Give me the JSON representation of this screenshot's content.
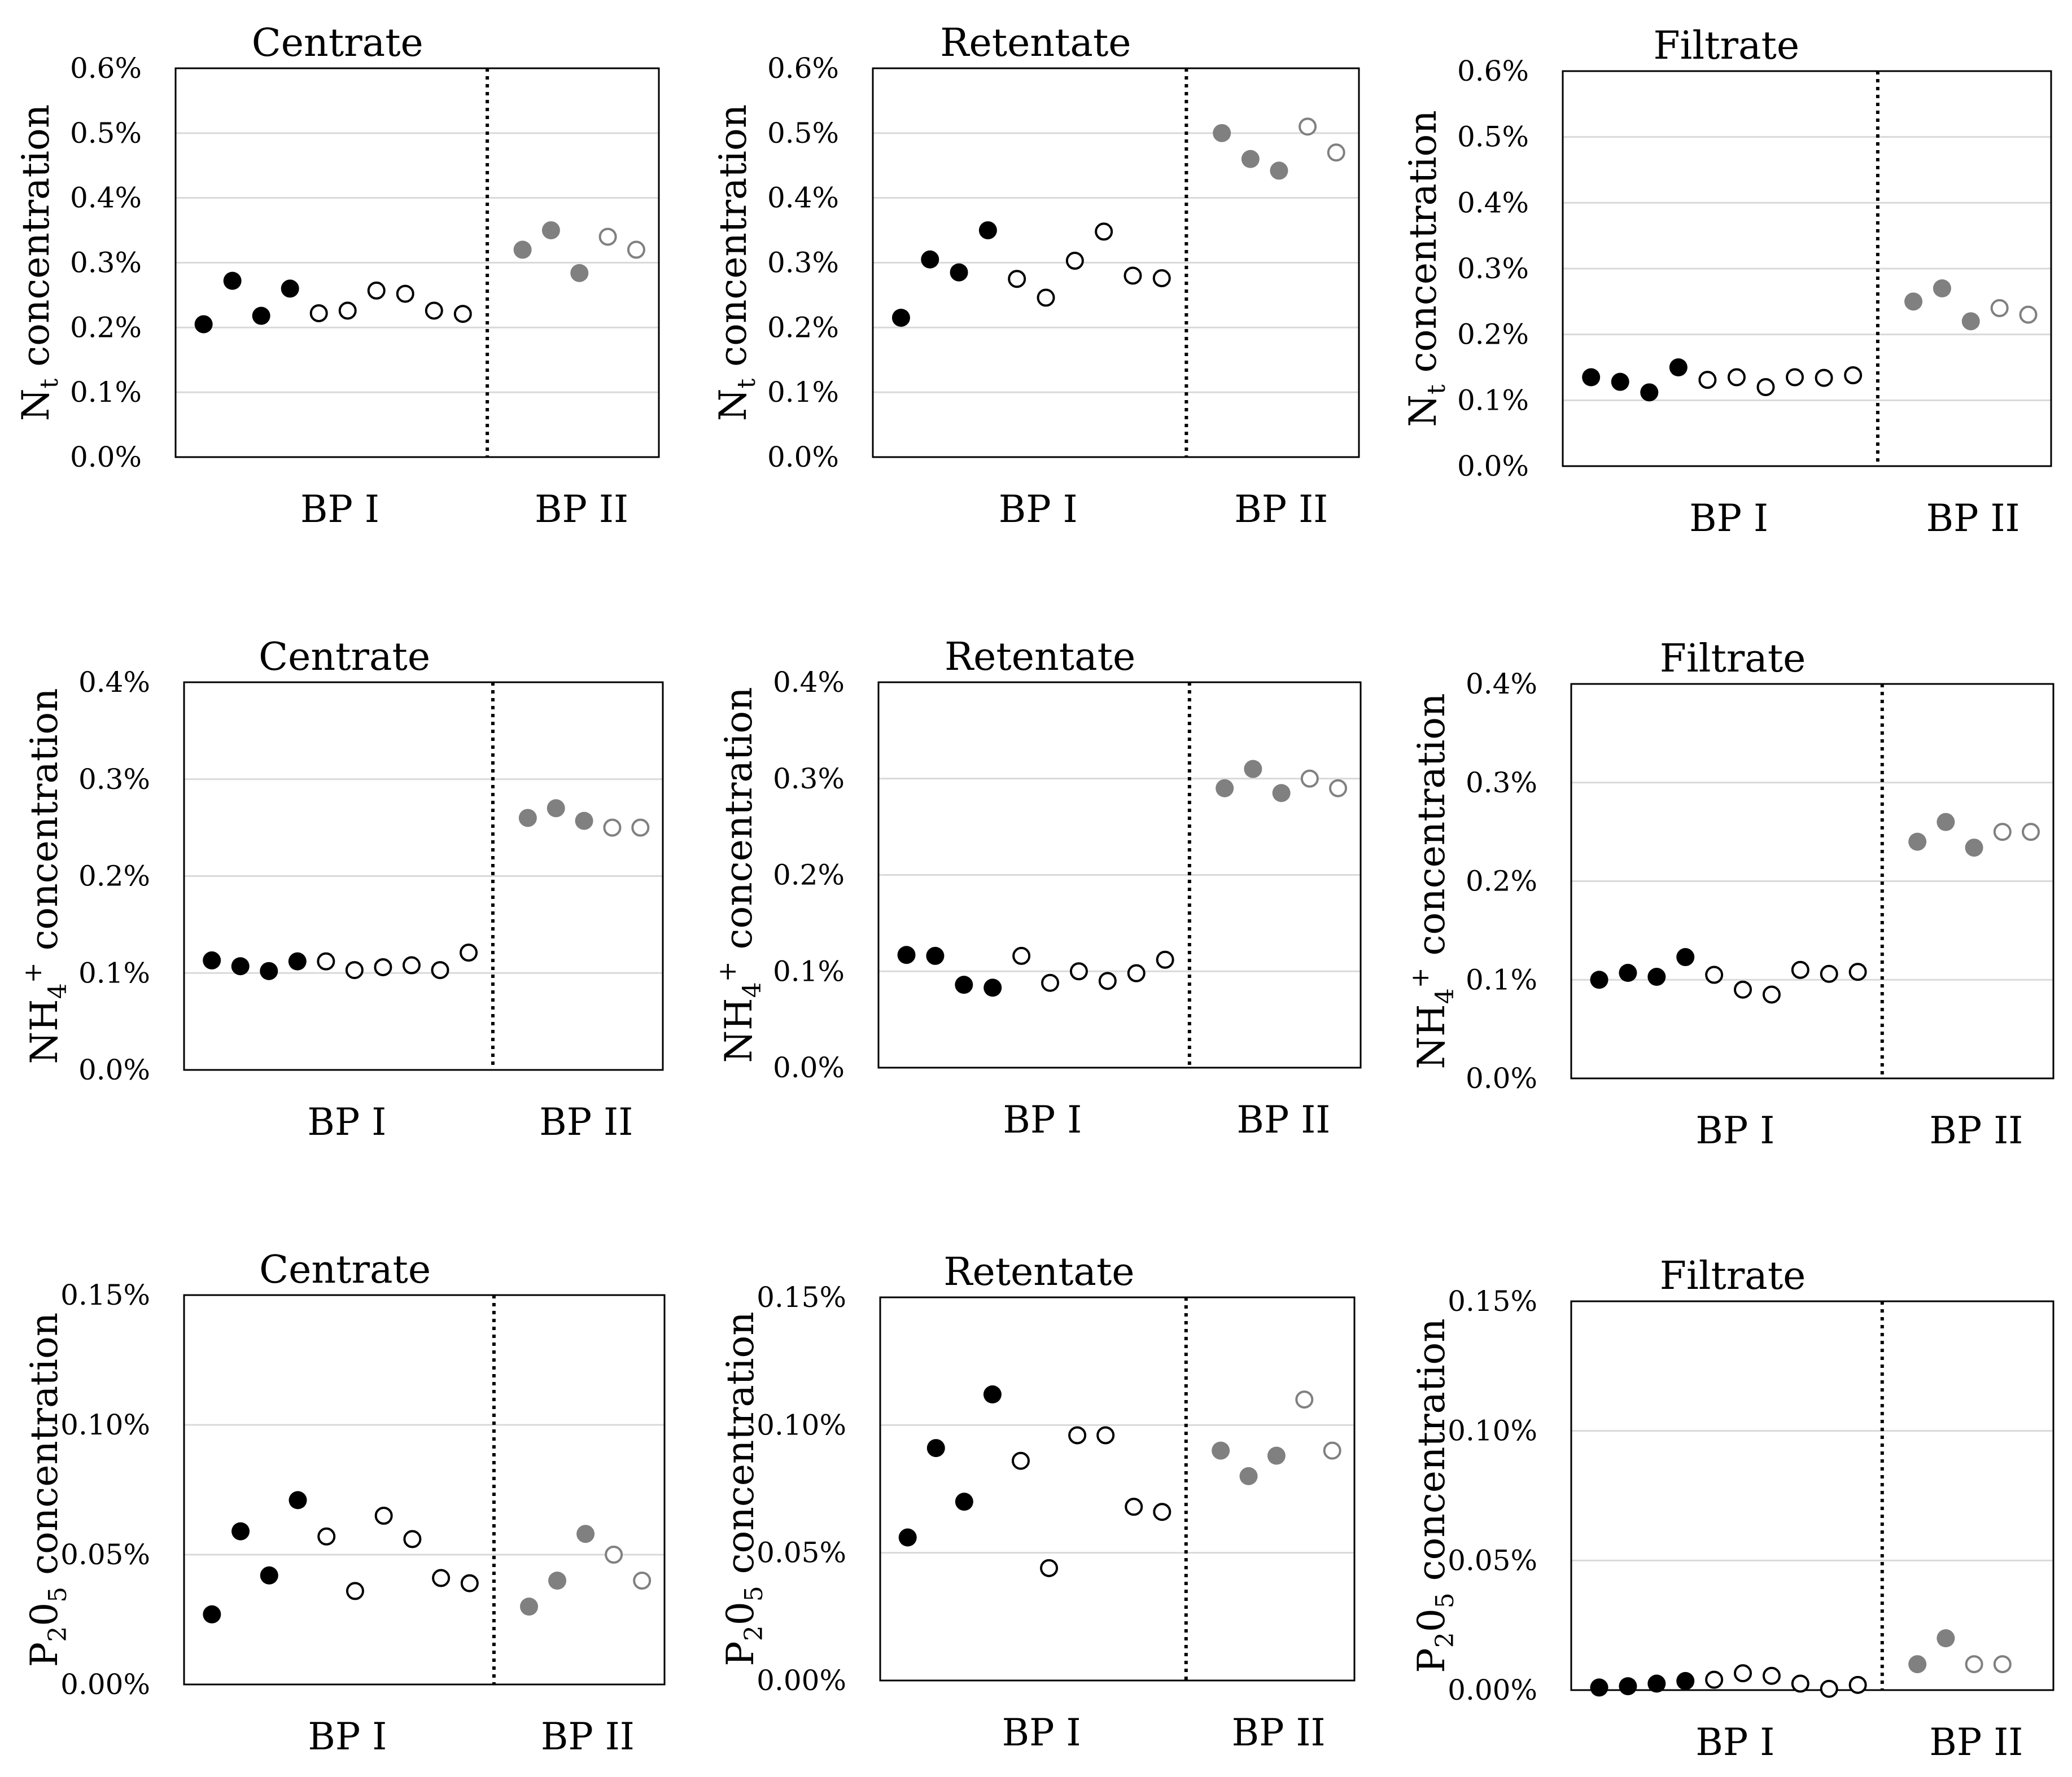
{
  "figure": {
    "colors": {
      "black_fill": "#000000",
      "gray_fill": "#808080",
      "open_stroke_black": "#000000",
      "open_stroke_gray": "#808080",
      "grid": "#d9d9d9"
    },
    "group_labels": [
      "BP I",
      "BP II"
    ]
  },
  "chart_data": [
    {
      "type": "scatter",
      "title": "Centrate",
      "ylabel": {
        "base": "N",
        "sub": "t",
        "sup": "",
        "rest": " concentration"
      },
      "ylim": [
        0,
        0.6
      ],
      "yticks": [
        "0.0%",
        "0.1%",
        "0.2%",
        "0.3%",
        "0.4%",
        "0.5%",
        "0.6%"
      ],
      "groups": [
        "BP I",
        "BP II"
      ],
      "bp1": [
        {
          "y": 0.205,
          "style": "black"
        },
        {
          "y": 0.272,
          "style": "black"
        },
        {
          "y": 0.218,
          "style": "black"
        },
        {
          "y": 0.26,
          "style": "black"
        },
        {
          "y": 0.222,
          "style": "open"
        },
        {
          "y": 0.226,
          "style": "open"
        },
        {
          "y": 0.257,
          "style": "open"
        },
        {
          "y": 0.252,
          "style": "open"
        },
        {
          "y": 0.226,
          "style": "open"
        },
        {
          "y": 0.221,
          "style": "open"
        }
      ],
      "bp2": [
        {
          "y": 0.32,
          "style": "gray"
        },
        {
          "y": 0.35,
          "style": "gray"
        },
        {
          "y": 0.284,
          "style": "gray"
        },
        {
          "y": 0.34,
          "style": "gray-open"
        },
        {
          "y": 0.32,
          "style": "gray-open"
        }
      ]
    },
    {
      "type": "scatter",
      "title": "Retentate",
      "ylabel": {
        "base": "N",
        "sub": "t",
        "sup": "",
        "rest": " concentration"
      },
      "ylim": [
        0,
        0.6
      ],
      "yticks": [
        "0.0%",
        "0.1%",
        "0.2%",
        "0.3%",
        "0.4%",
        "0.5%",
        "0.6%"
      ],
      "groups": [
        "BP I",
        "BP II"
      ],
      "bp1": [
        {
          "y": 0.215,
          "style": "black"
        },
        {
          "y": 0.305,
          "style": "black"
        },
        {
          "y": 0.285,
          "style": "black"
        },
        {
          "y": 0.35,
          "style": "black"
        },
        {
          "y": 0.275,
          "style": "open"
        },
        {
          "y": 0.246,
          "style": "open"
        },
        {
          "y": 0.303,
          "style": "open"
        },
        {
          "y": 0.348,
          "style": "open"
        },
        {
          "y": 0.28,
          "style": "open"
        },
        {
          "y": 0.276,
          "style": "open"
        }
      ],
      "bp2": [
        {
          "y": 0.5,
          "style": "gray"
        },
        {
          "y": 0.46,
          "style": "gray"
        },
        {
          "y": 0.442,
          "style": "gray"
        },
        {
          "y": 0.51,
          "style": "gray-open"
        },
        {
          "y": 0.47,
          "style": "gray-open"
        }
      ]
    },
    {
      "type": "scatter",
      "title": "Filtrate",
      "ylabel": {
        "base": "N",
        "sub": "t",
        "sup": "",
        "rest": " concentration"
      },
      "ylim": [
        0,
        0.6
      ],
      "yticks": [
        "0.0%",
        "0.1%",
        "0.2%",
        "0.3%",
        "0.4%",
        "0.5%",
        "0.6%"
      ],
      "groups": [
        "BP I",
        "BP II"
      ],
      "bp1": [
        {
          "y": 0.135,
          "style": "black"
        },
        {
          "y": 0.128,
          "style": "black"
        },
        {
          "y": 0.112,
          "style": "black"
        },
        {
          "y": 0.15,
          "style": "black"
        },
        {
          "y": 0.131,
          "style": "open"
        },
        {
          "y": 0.135,
          "style": "open"
        },
        {
          "y": 0.12,
          "style": "open"
        },
        {
          "y": 0.135,
          "style": "open"
        },
        {
          "y": 0.134,
          "style": "open"
        },
        {
          "y": 0.138,
          "style": "open"
        }
      ],
      "bp2": [
        {
          "y": 0.25,
          "style": "gray"
        },
        {
          "y": 0.27,
          "style": "gray"
        },
        {
          "y": 0.22,
          "style": "gray"
        },
        {
          "y": 0.24,
          "style": "gray-open"
        },
        {
          "y": 0.23,
          "style": "gray-open"
        }
      ]
    },
    {
      "type": "scatter",
      "title": "Centrate",
      "ylabel": {
        "base": "NH",
        "sub": "4",
        "sup": "+",
        "rest": " concentration"
      },
      "ylim": [
        0,
        0.4
      ],
      "yticks": [
        "0.0%",
        "0.1%",
        "0.2%",
        "0.3%",
        "0.4%"
      ],
      "groups": [
        "BP I",
        "BP II"
      ],
      "bp1": [
        {
          "y": 0.113,
          "style": "black"
        },
        {
          "y": 0.107,
          "style": "black"
        },
        {
          "y": 0.102,
          "style": "black"
        },
        {
          "y": 0.112,
          "style": "black"
        },
        {
          "y": 0.112,
          "style": "open"
        },
        {
          "y": 0.103,
          "style": "open"
        },
        {
          "y": 0.106,
          "style": "open"
        },
        {
          "y": 0.108,
          "style": "open"
        },
        {
          "y": 0.103,
          "style": "open"
        },
        {
          "y": 0.121,
          "style": "open"
        }
      ],
      "bp2": [
        {
          "y": 0.26,
          "style": "gray"
        },
        {
          "y": 0.27,
          "style": "gray"
        },
        {
          "y": 0.257,
          "style": "gray"
        },
        {
          "y": 0.25,
          "style": "gray-open"
        },
        {
          "y": 0.25,
          "style": "gray-open"
        }
      ]
    },
    {
      "type": "scatter",
      "title": "Retentate",
      "ylabel": {
        "base": "NH",
        "sub": "4",
        "sup": "+",
        "rest": " concentration"
      },
      "ylim": [
        0,
        0.4
      ],
      "yticks": [
        "0.0%",
        "0.1%",
        "0.2%",
        "0.3%",
        "0.4%"
      ],
      "groups": [
        "BP I",
        "BP II"
      ],
      "bp1": [
        {
          "y": 0.117,
          "style": "black"
        },
        {
          "y": 0.116,
          "style": "black"
        },
        {
          "y": 0.086,
          "style": "black"
        },
        {
          "y": 0.083,
          "style": "black"
        },
        {
          "y": 0.116,
          "style": "open"
        },
        {
          "y": 0.088,
          "style": "open"
        },
        {
          "y": 0.1,
          "style": "open"
        },
        {
          "y": 0.09,
          "style": "open"
        },
        {
          "y": 0.098,
          "style": "open"
        },
        {
          "y": 0.112,
          "style": "open"
        }
      ],
      "bp2": [
        {
          "y": 0.29,
          "style": "gray"
        },
        {
          "y": 0.31,
          "style": "gray"
        },
        {
          "y": 0.285,
          "style": "gray"
        },
        {
          "y": 0.3,
          "style": "gray-open"
        },
        {
          "y": 0.29,
          "style": "gray-open"
        }
      ]
    },
    {
      "type": "scatter",
      "title": "Filtrate",
      "ylabel": {
        "base": "NH",
        "sub": "4",
        "sup": "+",
        "rest": " concentration"
      },
      "ylim": [
        0,
        0.4
      ],
      "yticks": [
        "0.0%",
        "0.1%",
        "0.2%",
        "0.3%",
        "0.4%"
      ],
      "groups": [
        "BP I",
        "BP II"
      ],
      "bp1": [
        {
          "y": 0.1,
          "style": "black"
        },
        {
          "y": 0.107,
          "style": "black"
        },
        {
          "y": 0.103,
          "style": "black"
        },
        {
          "y": 0.123,
          "style": "black"
        },
        {
          "y": 0.105,
          "style": "open"
        },
        {
          "y": 0.09,
          "style": "open"
        },
        {
          "y": 0.085,
          "style": "open"
        },
        {
          "y": 0.11,
          "style": "open"
        },
        {
          "y": 0.106,
          "style": "open"
        },
        {
          "y": 0.108,
          "style": "open"
        }
      ],
      "bp2": [
        {
          "y": 0.24,
          "style": "gray"
        },
        {
          "y": 0.26,
          "style": "gray"
        },
        {
          "y": 0.234,
          "style": "gray"
        },
        {
          "y": 0.25,
          "style": "gray-open"
        },
        {
          "y": 0.25,
          "style": "gray-open"
        }
      ]
    },
    {
      "type": "scatter",
      "title": "Centrate",
      "ylabel": {
        "base": "P",
        "sub": "2",
        "mid": "0",
        "sub2": "5",
        "rest": " concentration"
      },
      "ylim": [
        0,
        0.15
      ],
      "yticks": [
        "0.00%",
        "0.05%",
        "0.10%",
        "0.15%"
      ],
      "groups": [
        "BP I",
        "BP II"
      ],
      "bp1": [
        {
          "y": 0.027,
          "style": "black"
        },
        {
          "y": 0.059,
          "style": "black"
        },
        {
          "y": 0.042,
          "style": "black"
        },
        {
          "y": 0.071,
          "style": "black"
        },
        {
          "y": 0.057,
          "style": "open"
        },
        {
          "y": 0.036,
          "style": "open"
        },
        {
          "y": 0.065,
          "style": "open"
        },
        {
          "y": 0.056,
          "style": "open"
        },
        {
          "y": 0.041,
          "style": "open"
        },
        {
          "y": 0.039,
          "style": "open"
        }
      ],
      "bp2": [
        {
          "y": 0.03,
          "style": "gray"
        },
        {
          "y": 0.04,
          "style": "gray"
        },
        {
          "y": 0.058,
          "style": "gray"
        },
        {
          "y": 0.05,
          "style": "gray-open"
        },
        {
          "y": 0.04,
          "style": "gray-open"
        }
      ]
    },
    {
      "type": "scatter",
      "title": "Retentate",
      "ylabel": {
        "base": "P",
        "sub": "2",
        "mid": "0",
        "sub2": "5",
        "rest": " concentration"
      },
      "ylim": [
        0,
        0.15
      ],
      "yticks": [
        "0.00%",
        "0.05%",
        "0.10%",
        "0.15%"
      ],
      "groups": [
        "BP I",
        "BP II"
      ],
      "bp1": [
        {
          "y": 0.056,
          "style": "black"
        },
        {
          "y": 0.091,
          "style": "black"
        },
        {
          "y": 0.07,
          "style": "black"
        },
        {
          "y": 0.112,
          "style": "black"
        },
        {
          "y": 0.086,
          "style": "open"
        },
        {
          "y": 0.044,
          "style": "open"
        },
        {
          "y": 0.096,
          "style": "open"
        },
        {
          "y": 0.096,
          "style": "open"
        },
        {
          "y": 0.068,
          "style": "open"
        },
        {
          "y": 0.066,
          "style": "open"
        }
      ],
      "bp2": [
        {
          "y": 0.09,
          "style": "gray"
        },
        {
          "y": 0.08,
          "style": "gray"
        },
        {
          "y": 0.088,
          "style": "gray"
        },
        {
          "y": 0.11,
          "style": "gray-open"
        },
        {
          "y": 0.09,
          "style": "gray-open"
        }
      ]
    },
    {
      "type": "scatter",
      "title": "Filtrate",
      "ylabel": {
        "base": "P",
        "sub": "2",
        "mid": "0",
        "sub2": "5",
        "rest": " concentration"
      },
      "ylim": [
        0,
        0.15
      ],
      "yticks": [
        "0.00%",
        "0.05%",
        "0.10%",
        "0.15%"
      ],
      "groups": [
        "BP I",
        "BP II"
      ],
      "bp1": [
        {
          "y": 0.001,
          "style": "black"
        },
        {
          "y": 0.0015,
          "style": "black"
        },
        {
          "y": 0.0025,
          "style": "black"
        },
        {
          "y": 0.0035,
          "style": "black"
        },
        {
          "y": 0.004,
          "style": "open"
        },
        {
          "y": 0.0065,
          "style": "open"
        },
        {
          "y": 0.0055,
          "style": "open"
        },
        {
          "y": 0.0025,
          "style": "open"
        },
        {
          "y": 0.0005,
          "style": "open"
        },
        {
          "y": 0.002,
          "style": "open"
        }
      ],
      "bp2": [
        {
          "y": 0.01,
          "style": "gray"
        },
        {
          "y": 0.02,
          "style": "gray"
        },
        {
          "y": 0.01,
          "style": "gray-open"
        },
        {
          "y": 0.01,
          "style": "gray-open"
        }
      ]
    }
  ]
}
